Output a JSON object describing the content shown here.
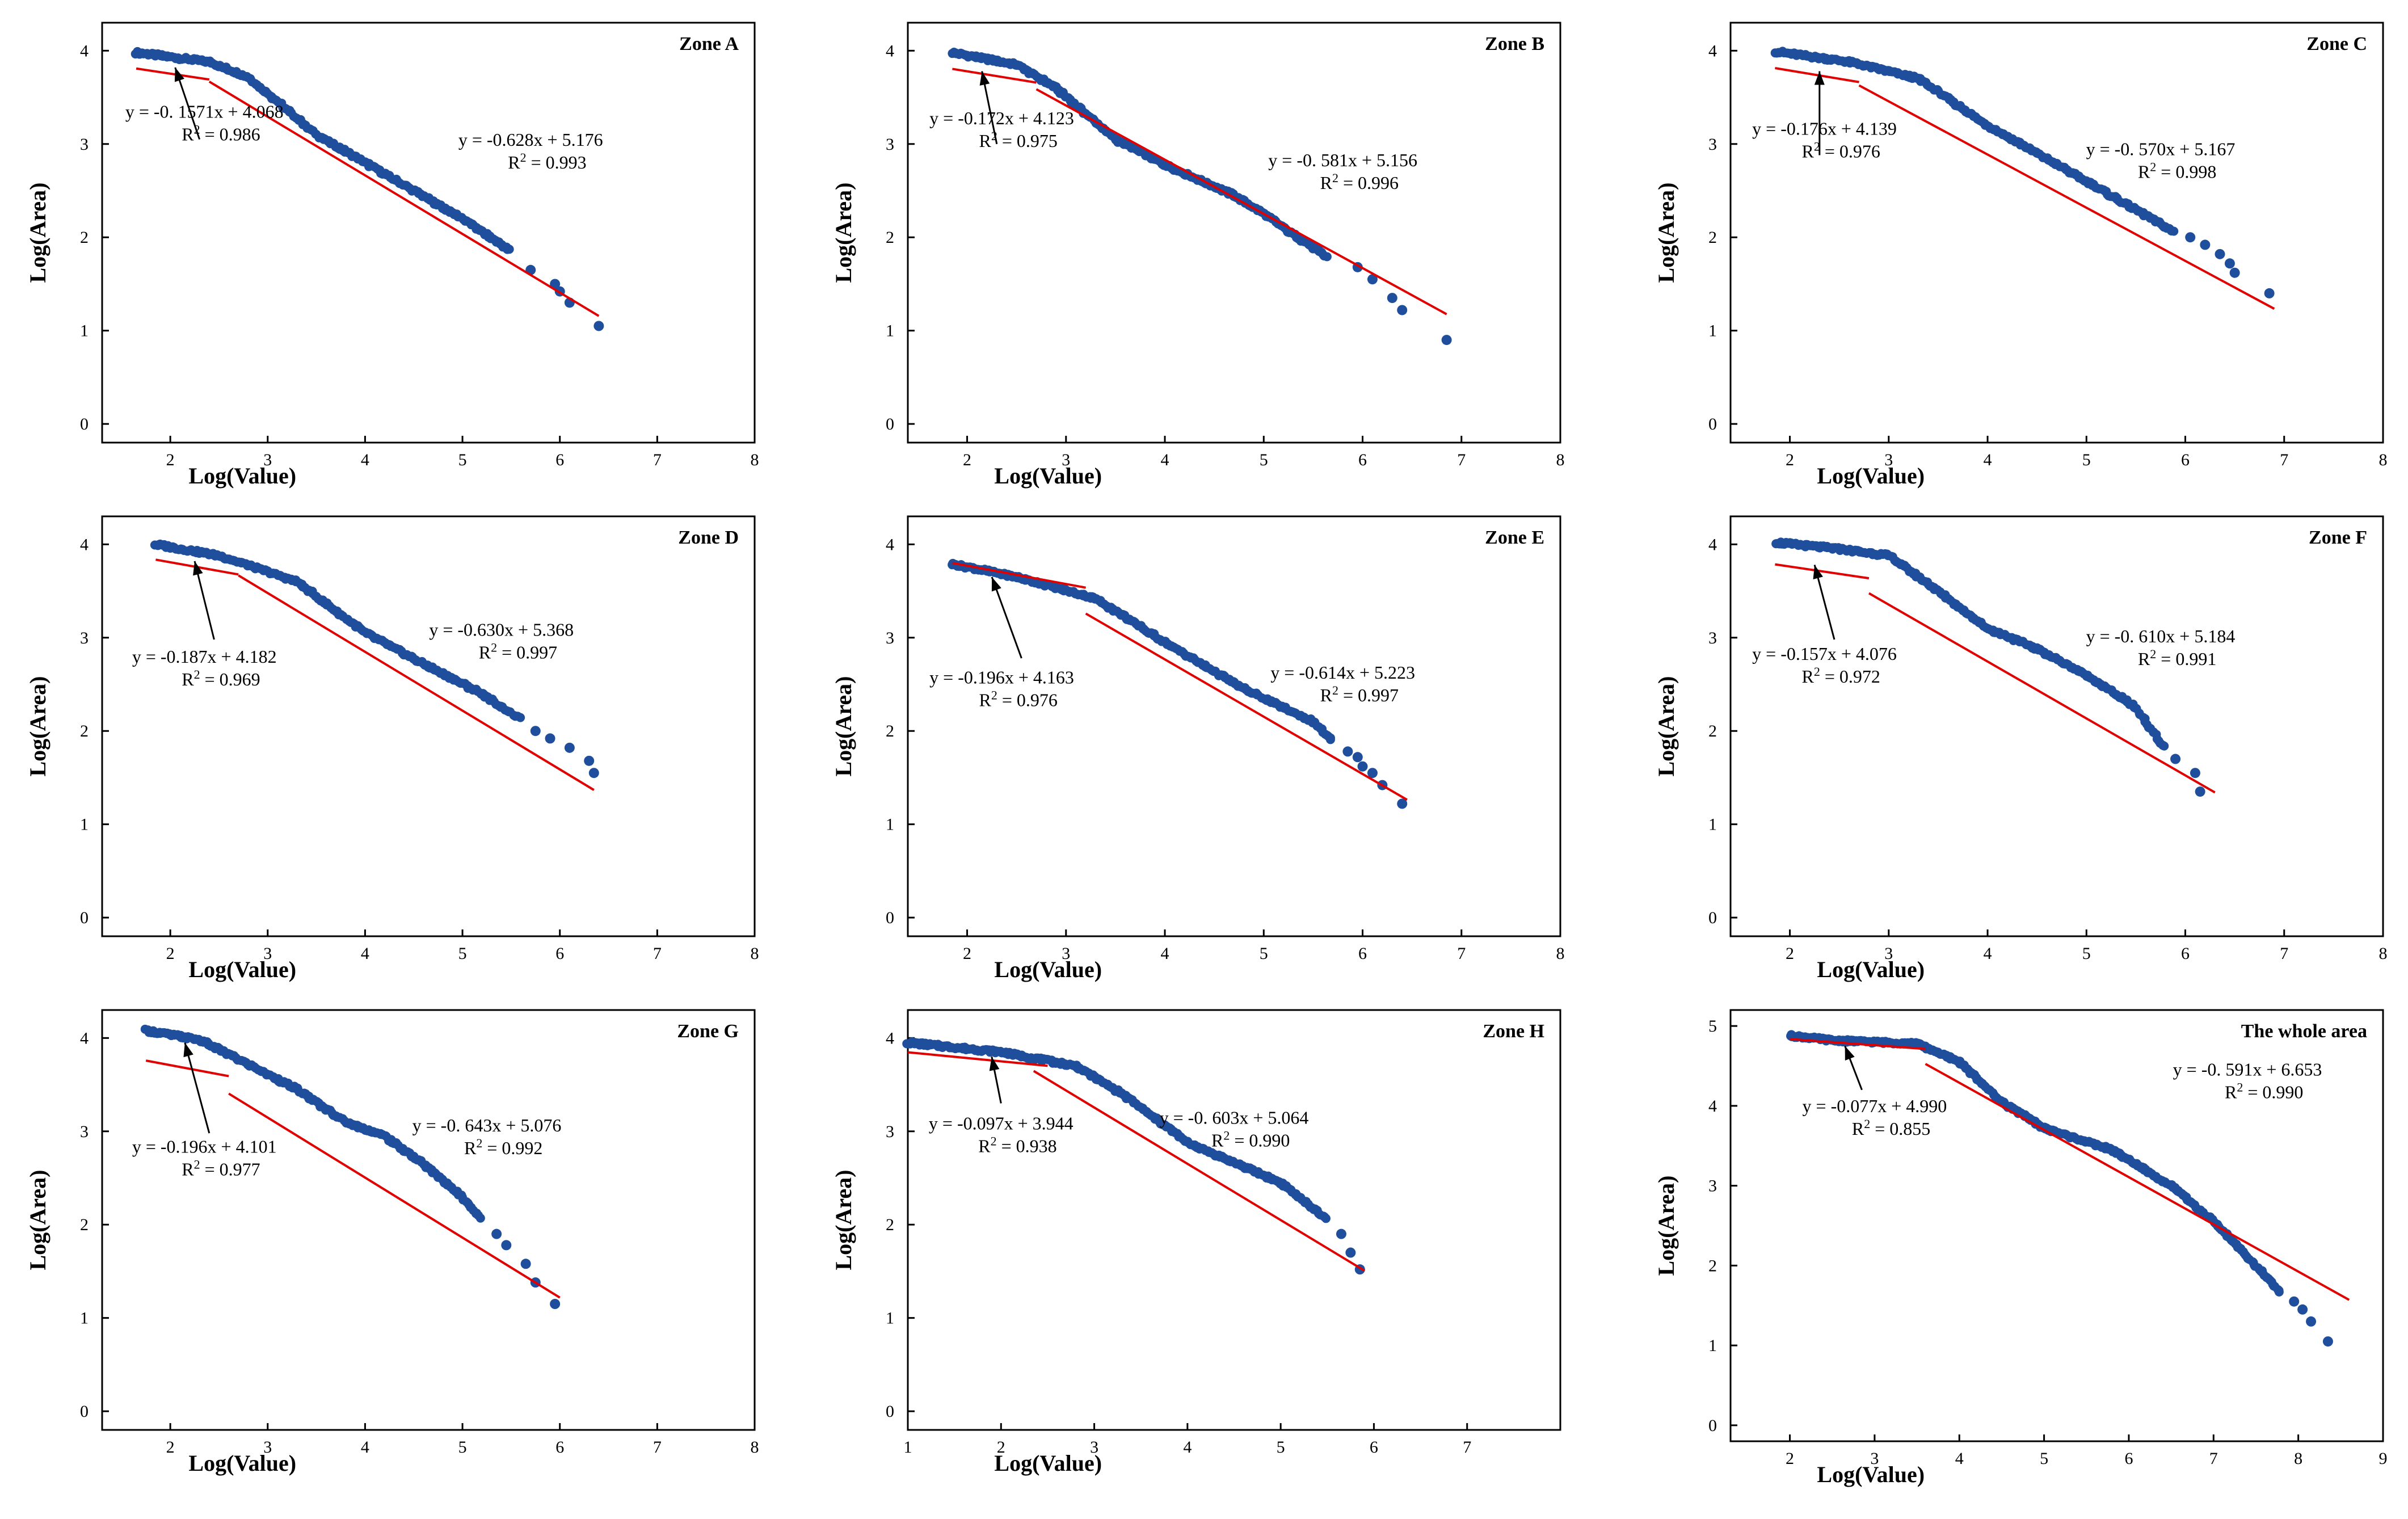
{
  "colors": {
    "points": "#1f4e9c",
    "fit_line": "#e00000",
    "axes": "#000000",
    "background": "#ffffff"
  },
  "chart_data": [
    {
      "type": "scatter",
      "title": "Zone A",
      "xlabel": "Log(Value)",
      "ylabel": "Log(Area)",
      "xlim": [
        1.3,
        8
      ],
      "ylim": [
        -0.2,
        4.3
      ],
      "xticks": [
        2,
        3,
        4,
        5,
        6,
        7,
        8
      ],
      "yticks": [
        0,
        1,
        2,
        3,
        4
      ],
      "curve": [
        [
          1.65,
          3.98
        ],
        [
          2.4,
          3.88
        ],
        [
          2.8,
          3.72
        ],
        [
          3.5,
          3.1
        ],
        [
          4.0,
          2.8
        ],
        [
          5.0,
          2.2
        ],
        [
          5.5,
          1.85
        ]
      ],
      "outliers": [
        [
          5.7,
          1.65
        ],
        [
          5.95,
          1.5
        ],
        [
          6.0,
          1.42
        ],
        [
          6.1,
          1.3
        ],
        [
          6.4,
          1.05
        ]
      ],
      "fits": [
        {
          "x": [
            1.65,
            2.4
          ],
          "slope": -0.1571,
          "intercept": 4.068
        },
        {
          "x": [
            2.4,
            6.4
          ],
          "slope": -0.628,
          "intercept": 5.176
        }
      ],
      "annotations": [
        {
          "eq": "y = -0. 1571x + 4.068",
          "r2": "0.986",
          "at": [
            2.35,
            3.28
          ],
          "arrow_from": [
            2.3,
            3.05
          ],
          "arrow_to": [
            2.05,
            3.82
          ]
        },
        {
          "eq": "y = -0.628x + 5.176",
          "r2": "0.993",
          "at": [
            5.7,
            2.98
          ]
        }
      ]
    },
    {
      "type": "scatter",
      "title": "Zone B",
      "xlabel": "Log(Value)",
      "ylabel": "Log(Area)",
      "xlim": [
        1.4,
        8
      ],
      "ylim": [
        -0.2,
        4.3
      ],
      "xticks": [
        2,
        3,
        4,
        5,
        6,
        7,
        8
      ],
      "yticks": [
        0,
        1,
        2,
        3,
        4
      ],
      "curve": [
        [
          1.85,
          3.98
        ],
        [
          2.5,
          3.85
        ],
        [
          2.9,
          3.6
        ],
        [
          3.5,
          3.05
        ],
        [
          4.0,
          2.78
        ],
        [
          4.7,
          2.45
        ],
        [
          5.0,
          2.25
        ],
        [
          5.65,
          1.78
        ]
      ],
      "outliers": [
        [
          5.95,
          1.68
        ],
        [
          6.1,
          1.55
        ],
        [
          6.3,
          1.35
        ],
        [
          6.4,
          1.22
        ],
        [
          6.85,
          0.9
        ]
      ],
      "fits": [
        {
          "x": [
            1.85,
            2.7
          ],
          "slope": -0.172,
          "intercept": 4.123
        },
        {
          "x": [
            2.7,
            6.85
          ],
          "slope": -0.581,
          "intercept": 5.156
        }
      ],
      "annotations": [
        {
          "eq": "y = -0.172x + 4.123",
          "r2": "0.975",
          "at": [
            2.35,
            3.21
          ],
          "arrow_from": [
            2.3,
            3.0
          ],
          "arrow_to": [
            2.15,
            3.78
          ]
        },
        {
          "eq": "y = -0. 581x + 5.156",
          "r2": "0.996",
          "at": [
            5.8,
            2.76
          ]
        }
      ]
    },
    {
      "type": "scatter",
      "title": "Zone C",
      "xlabel": "Log(Value)",
      "ylabel": "Log(Area)",
      "xlim": [
        1.4,
        8
      ],
      "ylim": [
        -0.2,
        4.3
      ],
      "xticks": [
        2,
        3,
        4,
        5,
        6,
        7,
        8
      ],
      "yticks": [
        0,
        1,
        2,
        3,
        4
      ],
      "curve": [
        [
          1.85,
          3.99
        ],
        [
          2.6,
          3.88
        ],
        [
          3.3,
          3.7
        ],
        [
          4.0,
          3.2
        ],
        [
          5.0,
          2.6
        ],
        [
          5.9,
          2.05
        ]
      ],
      "outliers": [
        [
          6.05,
          2.0
        ],
        [
          6.2,
          1.92
        ],
        [
          6.35,
          1.82
        ],
        [
          6.45,
          1.72
        ],
        [
          6.5,
          1.62
        ],
        [
          6.85,
          1.4
        ]
      ],
      "fits": [
        {
          "x": [
            1.85,
            2.7
          ],
          "slope": -0.176,
          "intercept": 4.139
        },
        {
          "x": [
            2.7,
            6.9
          ],
          "slope": -0.57,
          "intercept": 5.167
        }
      ],
      "annotations": [
        {
          "eq": "y = -0.176x + 4.139",
          "r2": "0.976",
          "at": [
            2.35,
            3.1
          ],
          "arrow_from": [
            2.3,
            2.88
          ],
          "arrow_to": [
            2.3,
            3.78
          ]
        },
        {
          "eq": "y = -0. 570x + 5.167",
          "r2": "0.998",
          "at": [
            5.75,
            2.88
          ]
        }
      ]
    },
    {
      "type": "scatter",
      "title": "Zone D",
      "xlabel": "Log(Value)",
      "ylabel": "Log(Area)",
      "xlim": [
        1.3,
        8
      ],
      "ylim": [
        -0.2,
        4.3
      ],
      "xticks": [
        2,
        3,
        4,
        5,
        6,
        7,
        8
      ],
      "yticks": [
        0,
        1,
        2,
        3,
        4
      ],
      "curve": [
        [
          1.85,
          4.0
        ],
        [
          2.5,
          3.88
        ],
        [
          3.3,
          3.6
        ],
        [
          4.0,
          3.05
        ],
        [
          4.6,
          2.72
        ],
        [
          5.2,
          2.4
        ],
        [
          5.6,
          2.12
        ]
      ],
      "outliers": [
        [
          5.75,
          2.0
        ],
        [
          5.9,
          1.92
        ],
        [
          6.1,
          1.82
        ],
        [
          6.3,
          1.68
        ],
        [
          6.35,
          1.55
        ]
      ],
      "fits": [
        {
          "x": [
            1.85,
            2.7
          ],
          "slope": -0.187,
          "intercept": 4.182
        },
        {
          "x": [
            2.7,
            6.35
          ],
          "slope": -0.63,
          "intercept": 5.368
        }
      ],
      "annotations": [
        {
          "eq": "y = -0.187x + 4.182",
          "r2": "0.969",
          "at": [
            2.35,
            2.73
          ],
          "arrow_from": [
            2.45,
            2.98
          ],
          "arrow_to": [
            2.25,
            3.82
          ]
        },
        {
          "eq": "y = -0.630x + 5.368",
          "r2": "0.997",
          "at": [
            5.4,
            3.02
          ]
        }
      ]
    },
    {
      "type": "scatter",
      "title": "Zone E",
      "xlabel": "Log(Value)",
      "ylabel": "Log(Area)",
      "xlim": [
        1.4,
        8
      ],
      "ylim": [
        -0.2,
        4.3
      ],
      "xticks": [
        2,
        3,
        4,
        5,
        6,
        7,
        8
      ],
      "yticks": [
        0,
        1,
        2,
        3,
        4
      ],
      "curve": [
        [
          1.85,
          3.79
        ],
        [
          2.5,
          3.65
        ],
        [
          3.3,
          3.42
        ],
        [
          4.0,
          2.95
        ],
        [
          4.8,
          2.45
        ],
        [
          5.5,
          2.1
        ],
        [
          5.7,
          1.88
        ]
      ],
      "outliers": [
        [
          5.85,
          1.78
        ],
        [
          5.95,
          1.72
        ],
        [
          6.0,
          1.62
        ],
        [
          6.1,
          1.55
        ],
        [
          6.2,
          1.42
        ],
        [
          6.4,
          1.22
        ]
      ],
      "fits": [
        {
          "x": [
            1.85,
            3.2
          ],
          "slope": -0.196,
          "intercept": 4.163
        },
        {
          "x": [
            3.2,
            6.45
          ],
          "slope": -0.614,
          "intercept": 5.223
        }
      ],
      "annotations": [
        {
          "eq": "y = -0.196x + 4.163",
          "r2": "0.976",
          "at": [
            2.35,
            2.51
          ],
          "arrow_from": [
            2.55,
            2.78
          ],
          "arrow_to": [
            2.25,
            3.65
          ]
        },
        {
          "eq": "y = -0.614x + 5.223",
          "r2": "0.997",
          "at": [
            5.8,
            2.56
          ]
        }
      ]
    },
    {
      "type": "scatter",
      "title": "Zone F",
      "xlabel": "Log(Value)",
      "ylabel": "Log(Area)",
      "xlim": [
        1.4,
        8
      ],
      "ylim": [
        -0.2,
        4.3
      ],
      "xticks": [
        2,
        3,
        4,
        5,
        6,
        7,
        8
      ],
      "yticks": [
        0,
        1,
        2,
        3,
        4
      ],
      "curve": [
        [
          1.85,
          4.02
        ],
        [
          2.5,
          3.95
        ],
        [
          3.0,
          3.88
        ],
        [
          3.5,
          3.5
        ],
        [
          4.0,
          3.1
        ],
        [
          4.5,
          2.88
        ],
        [
          5.0,
          2.6
        ],
        [
          5.5,
          2.25
        ],
        [
          5.8,
          1.8
        ]
      ],
      "outliers": [
        [
          5.9,
          1.7
        ],
        [
          6.1,
          1.55
        ],
        [
          6.15,
          1.35
        ]
      ],
      "fits": [
        {
          "x": [
            1.85,
            2.8
          ],
          "slope": -0.157,
          "intercept": 4.076
        },
        {
          "x": [
            2.8,
            6.3
          ],
          "slope": -0.61,
          "intercept": 5.184
        }
      ],
      "annotations": [
        {
          "eq": "y = -0.157x + 4.076",
          "r2": "0.972",
          "at": [
            2.35,
            2.76
          ],
          "arrow_from": [
            2.45,
            2.98
          ],
          "arrow_to": [
            2.25,
            3.78
          ]
        },
        {
          "eq": "y = -0. 610x + 5.184",
          "r2": "0.991",
          "at": [
            5.75,
            2.95
          ]
        }
      ]
    },
    {
      "type": "scatter",
      "title": "Zone G",
      "xlabel": "Log(Value)",
      "ylabel": "Log(Area)",
      "xlim": [
        1.3,
        8
      ],
      "ylim": [
        -0.2,
        4.3
      ],
      "xticks": [
        2,
        3,
        4,
        5,
        6,
        7,
        8
      ],
      "yticks": [
        0,
        1,
        2,
        3,
        4
      ],
      "curve": [
        [
          1.75,
          4.08
        ],
        [
          2.3,
          3.98
        ],
        [
          2.8,
          3.72
        ],
        [
          3.3,
          3.45
        ],
        [
          3.8,
          3.1
        ],
        [
          4.2,
          2.95
        ],
        [
          4.6,
          2.65
        ],
        [
          5.0,
          2.3
        ],
        [
          5.2,
          2.05
        ]
      ],
      "outliers": [
        [
          5.35,
          1.9
        ],
        [
          5.45,
          1.78
        ],
        [
          5.65,
          1.58
        ],
        [
          5.75,
          1.38
        ],
        [
          5.95,
          1.15
        ]
      ],
      "fits": [
        {
          "x": [
            1.75,
            2.6
          ],
          "slope": -0.196,
          "intercept": 4.101
        },
        {
          "x": [
            2.6,
            6.0
          ],
          "slope": -0.643,
          "intercept": 5.076
        }
      ],
      "annotations": [
        {
          "eq": "y = -0.196x + 4.101",
          "r2": "0.977",
          "at": [
            2.35,
            2.77
          ],
          "arrow_from": [
            2.4,
            2.98
          ],
          "arrow_to": [
            2.15,
            3.95
          ]
        },
        {
          "eq": "y = -0. 643x + 5.076",
          "r2": "0.992",
          "at": [
            5.25,
            3.0
          ]
        }
      ]
    },
    {
      "type": "scatter",
      "title": "Zone H",
      "xlabel": "Log(Value)",
      "ylabel": "Log(Area)",
      "xlim": [
        1,
        8
      ],
      "ylim": [
        -0.2,
        4.3
      ],
      "xticks": [
        1,
        2,
        3,
        4,
        5,
        6,
        7
      ],
      "yticks": [
        0,
        1,
        2,
        3,
        4
      ],
      "curve": [
        [
          1.0,
          3.95
        ],
        [
          2.0,
          3.85
        ],
        [
          2.8,
          3.7
        ],
        [
          3.3,
          3.4
        ],
        [
          4.0,
          2.88
        ],
        [
          5.0,
          2.45
        ],
        [
          5.5,
          2.05
        ]
      ],
      "outliers": [
        [
          5.65,
          1.9
        ],
        [
          5.75,
          1.7
        ],
        [
          5.85,
          1.52
        ]
      ],
      "fits": [
        {
          "x": [
            1.0,
            2.5
          ],
          "slope": -0.097,
          "intercept": 3.944
        },
        {
          "x": [
            2.35,
            5.9
          ],
          "slope": -0.603,
          "intercept": 5.064
        }
      ],
      "annotations": [
        {
          "eq": "y = -0.097x + 3.944",
          "r2": "0.938",
          "at": [
            2.0,
            3.02
          ],
          "arrow_from": [
            2.0,
            3.3
          ],
          "arrow_to": [
            1.9,
            3.8
          ]
        },
        {
          "eq": "y = -0. 603x + 5.064",
          "r2": "0.990",
          "at": [
            4.5,
            3.08
          ]
        }
      ]
    },
    {
      "type": "scatter",
      "title": "The whole area",
      "xlabel": "Log(Value)",
      "ylabel": "Log(Area)",
      "xlim": [
        1.3,
        9
      ],
      "ylim": [
        -0.2,
        5.2
      ],
      "xticks": [
        2,
        3,
        4,
        5,
        6,
        7,
        8,
        9
      ],
      "yticks": [
        0,
        1,
        2,
        3,
        4,
        5
      ],
      "curve": [
        [
          2.0,
          4.88
        ],
        [
          2.5,
          4.82
        ],
        [
          3.5,
          4.78
        ],
        [
          4.0,
          4.55
        ],
        [
          4.5,
          4.05
        ],
        [
          5.0,
          3.72
        ],
        [
          5.8,
          3.45
        ],
        [
          6.5,
          3.0
        ],
        [
          7.0,
          2.55
        ],
        [
          7.5,
          2.0
        ],
        [
          7.8,
          1.65
        ]
      ],
      "outliers": [
        [
          7.95,
          1.55
        ],
        [
          8.05,
          1.45
        ],
        [
          8.15,
          1.3
        ],
        [
          8.35,
          1.05
        ]
      ],
      "fits": [
        {
          "x": [
            2.0,
            3.6
          ],
          "slope": -0.077,
          "intercept": 4.99
        },
        {
          "x": [
            3.6,
            8.6
          ],
          "slope": -0.591,
          "intercept": 6.653
        }
      ],
      "annotations": [
        {
          "eq": "y = -0.077x + 4.990",
          "r2": "0.855",
          "at": [
            3.0,
            3.92
          ],
          "arrow_from": [
            2.85,
            4.2
          ],
          "arrow_to": [
            2.65,
            4.75
          ]
        },
        {
          "eq": "y = -0. 591x + 6.653",
          "r2": "0.990",
          "at": [
            7.4,
            4.38
          ]
        }
      ]
    }
  ]
}
